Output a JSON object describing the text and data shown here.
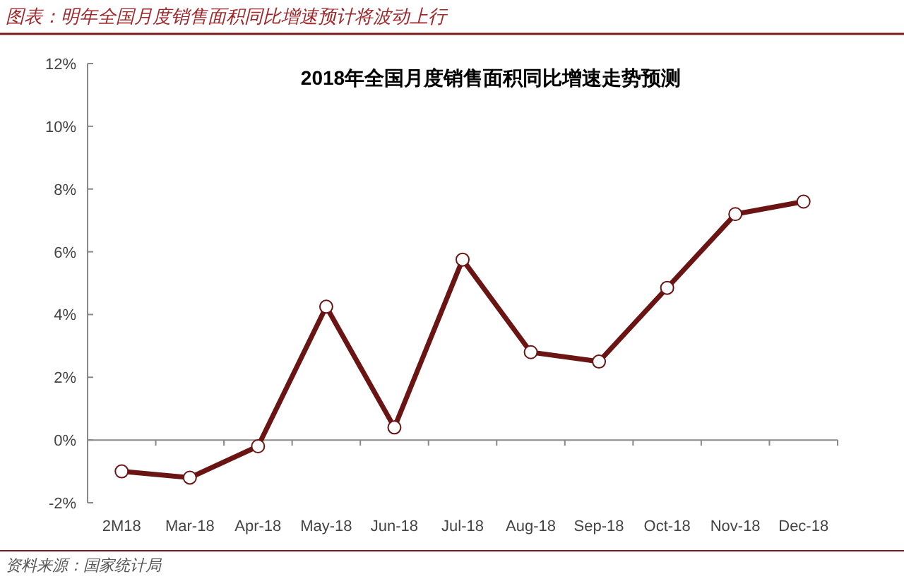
{
  "chart_data": {
    "type": "line",
    "title": "图表：明年全国月度销售面积同比增速预计将波动上行",
    "subtitle": "2018年全国月度销售面积同比增速走势预测",
    "categories": [
      "2M18",
      "Mar-18",
      "Apr-18",
      "May-18",
      "Jun-18",
      "Jul-18",
      "Aug-18",
      "Sep-18",
      "Oct-18",
      "Nov-18",
      "Dec-18"
    ],
    "series": [
      {
        "color": "#6b1414",
        "values": [
          -1.0,
          -1.2,
          -0.2,
          4.25,
          0.4,
          5.75,
          2.8,
          2.5,
          4.85,
          7.2,
          7.6
        ]
      }
    ],
    "ylim": [
      -2,
      12
    ],
    "yticks": [
      {
        "value": -2,
        "label": "-2%"
      },
      {
        "value": 0,
        "label": "0%"
      },
      {
        "value": 2,
        "label": "2%"
      },
      {
        "value": 4,
        "label": "4%"
      },
      {
        "value": 6,
        "label": "6%"
      },
      {
        "value": 8,
        "label": "8%"
      },
      {
        "value": 10,
        "label": "10%"
      },
      {
        "value": 12,
        "label": "12%"
      }
    ],
    "marker": "circle",
    "line_style": "solid",
    "annotations": [
      "资料来源：国家统计局"
    ]
  }
}
